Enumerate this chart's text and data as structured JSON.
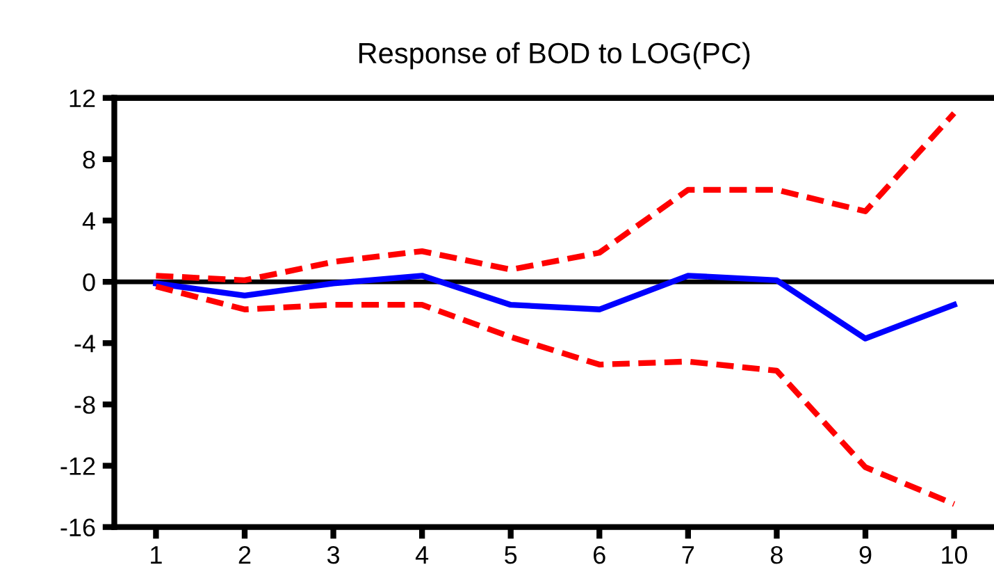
{
  "chart_data": {
    "type": "line",
    "title": "Response of BOD to LOG(PC)",
    "categories": [
      "1",
      "2",
      "3",
      "4",
      "5",
      "6",
      "7",
      "8",
      "9",
      "10"
    ],
    "series": [
      {
        "color": "#0000ff",
        "line_style": "solid",
        "values": [
          -0.1,
          -0.9,
          -0.1,
          0.4,
          -1.5,
          -1.8,
          0.4,
          0.1,
          -3.7,
          -1.5
        ]
      },
      {
        "color": "#ff0000",
        "line_style": "dashed",
        "values": [
          0.4,
          0.1,
          1.3,
          2.0,
          0.8,
          1.9,
          6.0,
          6.0,
          4.6,
          11.0
        ]
      },
      {
        "color": "#ff0000",
        "line_style": "dashed",
        "values": [
          -0.3,
          -1.8,
          -1.5,
          -1.5,
          -3.6,
          -5.4,
          -5.2,
          -5.8,
          -12.1,
          -14.5
        ]
      }
    ],
    "ylim": [
      -16,
      12
    ],
    "yticks": [
      -16,
      -12,
      -8,
      -4,
      0,
      4,
      8,
      12
    ],
    "ref_lines": [
      {
        "axis": "y",
        "value": 0,
        "color": "#000000"
      }
    ],
    "grid": false,
    "legend": false,
    "marker": "none"
  }
}
